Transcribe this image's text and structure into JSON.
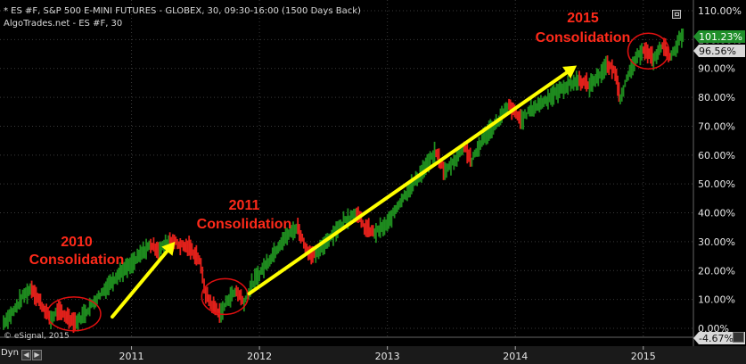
{
  "header": {
    "line1": "* ES #F, S&P 500 E-MINI FUTURES - GLOBEX, 30, 09:30-16:00 (1500 Days Back)",
    "line2": "AlgoTrades.net - ES #F, 30"
  },
  "watermark": "© eSignal, 2015",
  "dyn_label": "Dyn",
  "price_badges": {
    "upper": "101.23%",
    "lower": "96.56%",
    "bottom": "-4.67%"
  },
  "colors": {
    "up": "#1e8a1e",
    "down": "#e0201a",
    "arrow": "#ffff00",
    "annotation": "#ff2a1a",
    "axis_text": "#e6e6e6"
  },
  "annotations": [
    {
      "line1": "2010",
      "line2": "Consolidation"
    },
    {
      "line1": "2011",
      "line2": "Consolidation"
    },
    {
      "line1": "2015",
      "line2": "Consolidation"
    }
  ],
  "chart_data": {
    "type": "line",
    "title": "* ES #F, S&P 500 E-MINI FUTURES - GLOBEX, 30, 09:30-16:00 (1500 Days Back)",
    "y_axis": {
      "unit": "%",
      "ylim": [
        -4.67,
        110
      ],
      "ticks": [
        "110.00%",
        "100.00%",
        "90.00%",
        "80.00%",
        "70.00%",
        "60.00%",
        "50.00%",
        "40.00%",
        "30.00%",
        "20.00%",
        "10.00%",
        "0.00%"
      ]
    },
    "x_axis": {
      "ticks": [
        "2011",
        "2012",
        "2013",
        "2014",
        "2015"
      ]
    },
    "grid": true,
    "series": [
      {
        "values": [
          [
            2010.0,
            2
          ],
          [
            2010.08,
            6
          ],
          [
            2010.15,
            11
          ],
          [
            2010.22,
            14
          ],
          [
            2010.3,
            8
          ],
          [
            2010.37,
            3
          ],
          [
            2010.42,
            6
          ],
          [
            2010.5,
            4
          ],
          [
            2010.57,
            2
          ],
          [
            2010.65,
            6
          ],
          [
            2010.72,
            10
          ],
          [
            2010.8,
            14
          ],
          [
            2010.9,
            19
          ],
          [
            2011.0,
            22
          ],
          [
            2011.08,
            26
          ],
          [
            2011.15,
            29
          ],
          [
            2011.22,
            27
          ],
          [
            2011.3,
            31
          ],
          [
            2011.37,
            29
          ],
          [
            2011.45,
            28
          ],
          [
            2011.53,
            24
          ],
          [
            2011.58,
            12
          ],
          [
            2011.63,
            8
          ],
          [
            2011.7,
            5
          ],
          [
            2011.75,
            10
          ],
          [
            2011.82,
            13
          ],
          [
            2011.88,
            9
          ],
          [
            2011.94,
            15
          ],
          [
            2012.0,
            19
          ],
          [
            2012.08,
            24
          ],
          [
            2012.17,
            30
          ],
          [
            2012.24,
            33
          ],
          [
            2012.3,
            35
          ],
          [
            2012.37,
            27
          ],
          [
            2012.44,
            25
          ],
          [
            2012.52,
            30
          ],
          [
            2012.6,
            34
          ],
          [
            2012.68,
            38
          ],
          [
            2012.76,
            40
          ],
          [
            2012.82,
            35
          ],
          [
            2012.9,
            33
          ],
          [
            2013.0,
            36
          ],
          [
            2013.1,
            44
          ],
          [
            2013.2,
            50
          ],
          [
            2013.3,
            56
          ],
          [
            2013.38,
            61
          ],
          [
            2013.45,
            54
          ],
          [
            2013.52,
            58
          ],
          [
            2013.6,
            63
          ],
          [
            2013.66,
            58
          ],
          [
            2013.75,
            66
          ],
          [
            2013.85,
            71
          ],
          [
            2013.95,
            77
          ],
          [
            2014.05,
            72
          ],
          [
            2014.1,
            75
          ],
          [
            2014.2,
            78
          ],
          [
            2014.3,
            81
          ],
          [
            2014.4,
            84
          ],
          [
            2014.5,
            86
          ],
          [
            2014.58,
            84
          ],
          [
            2014.66,
            88
          ],
          [
            2014.72,
            91
          ],
          [
            2014.78,
            89
          ],
          [
            2014.82,
            80
          ],
          [
            2014.87,
            86
          ],
          [
            2014.93,
            92
          ],
          [
            2015.0,
            97
          ],
          [
            2015.08,
            93
          ],
          [
            2015.15,
            98
          ],
          [
            2015.22,
            94
          ],
          [
            2015.28,
            100
          ],
          [
            2015.32,
            101
          ]
        ]
      }
    ],
    "arrows": [
      {
        "from": [
          2010.85,
          4
        ],
        "to": [
          2011.34,
          30
        ]
      },
      {
        "from": [
          2011.92,
          12
        ],
        "to": [
          2014.48,
          91
        ]
      }
    ],
    "consolidation_ellipses": [
      {
        "center": [
          2010.55,
          5
        ],
        "label": "2010 Consolidation"
      },
      {
        "center": [
          2011.73,
          11
        ],
        "label": "2011 Consolidation"
      },
      {
        "center": [
          2015.04,
          96
        ],
        "label": "2015 Consolidation"
      }
    ]
  }
}
